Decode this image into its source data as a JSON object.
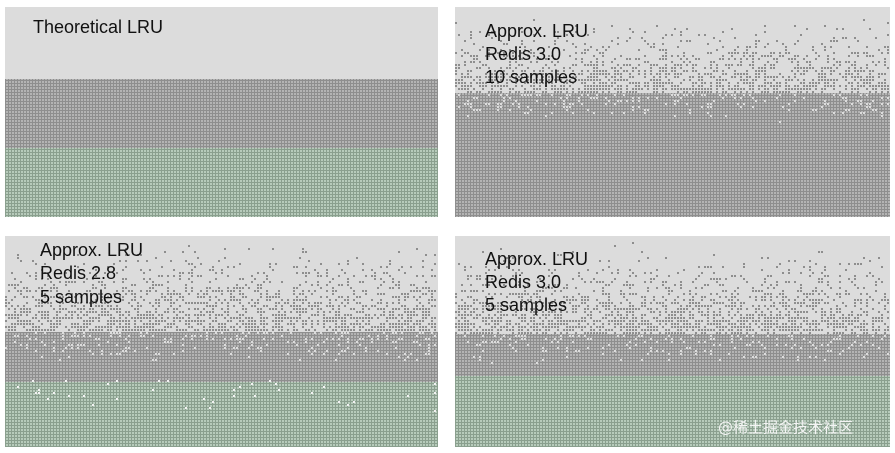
{
  "panels": [
    {
      "lines": [
        "Theoretical LRU"
      ]
    },
    {
      "lines": [
        "Approx. LRU",
        "Redis 3.0",
        "10 samples"
      ]
    },
    {
      "lines": [
        "Approx. LRU",
        "Redis 2.8",
        "5 samples"
      ]
    },
    {
      "lines": [
        "Approx. LRU",
        "Redis 3.0",
        "5 samples"
      ]
    }
  ],
  "watermark": "@稀土掘金技术社区"
}
